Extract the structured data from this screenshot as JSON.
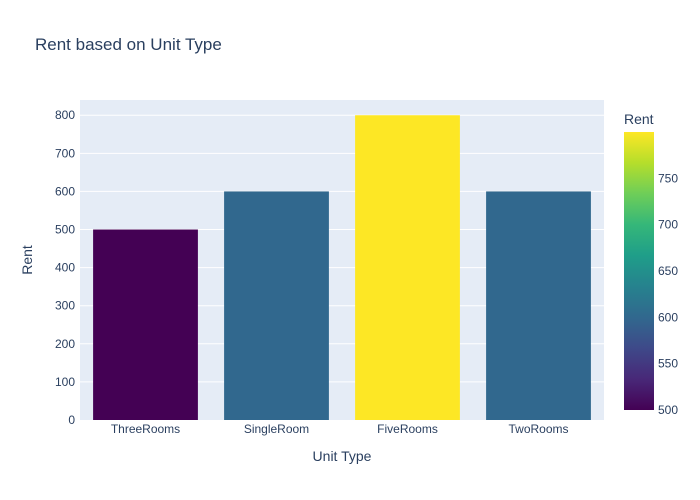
{
  "chart_data": {
    "type": "bar",
    "title": "Rent based on Unit Type",
    "xlabel": "Unit Type",
    "ylabel": "Rent",
    "categories": [
      "ThreeRooms",
      "SingleRoom",
      "FiveRooms",
      "TwoRooms"
    ],
    "values": [
      500,
      600,
      800,
      600
    ],
    "ylim": [
      0,
      840
    ],
    "yticks": [
      0,
      100,
      200,
      300,
      400,
      500,
      600,
      700,
      800
    ],
    "grid": true,
    "legend": "none",
    "colorbar": {
      "title": "Rent",
      "range": [
        500,
        800
      ],
      "ticks": [
        500,
        550,
        600,
        650,
        700,
        750
      ],
      "colorscale": [
        "#440154",
        "#482878",
        "#3e4989",
        "#31688e",
        "#26828e",
        "#1f9e89",
        "#35b779",
        "#6ece58",
        "#b5de2b",
        "#fde725"
      ],
      "placement": "right"
    },
    "colors": {
      "plot_background": "#e5ecf6",
      "grid": "#ffffff",
      "text": "#2a3f5f"
    }
  }
}
